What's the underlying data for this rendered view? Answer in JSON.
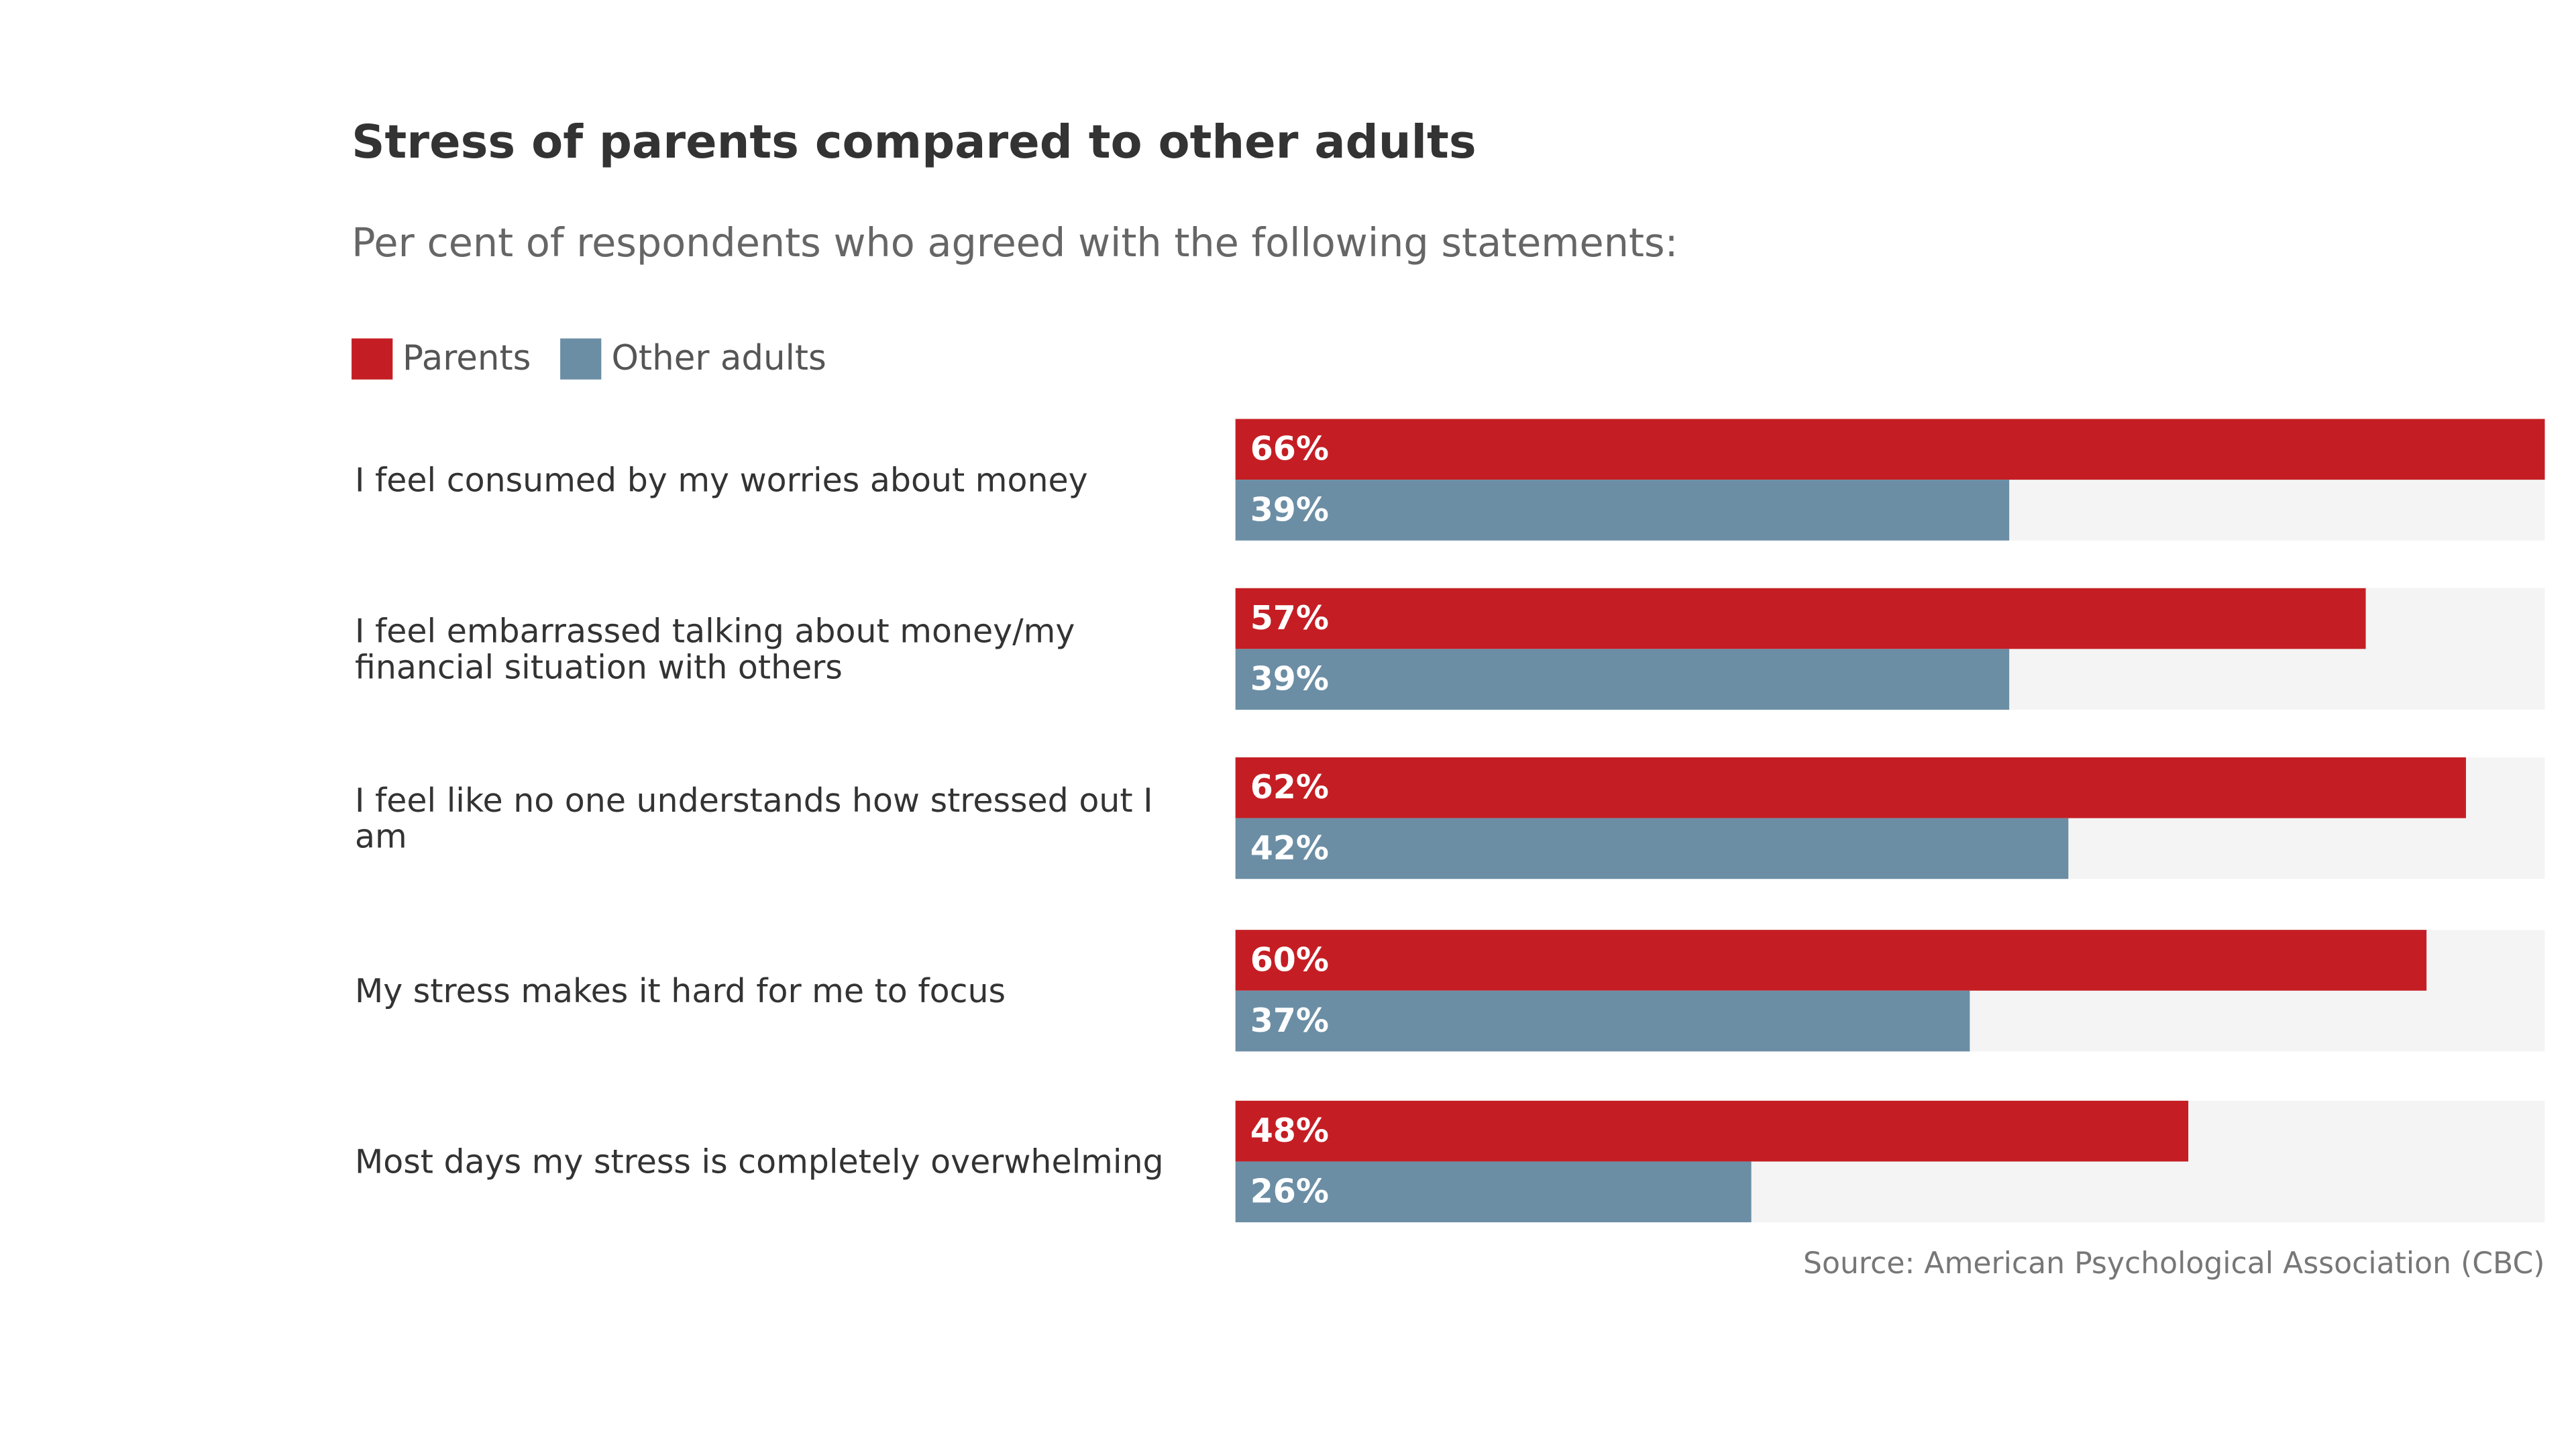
{
  "chart_data": {
    "type": "bar",
    "orientation": "horizontal",
    "title": "Stress of parents compared to other adults",
    "subtitle": "Per cent of respondents who agreed with the following statements:",
    "categories": [
      "I feel consumed by my worries about money",
      "I feel embarrassed talking about money/my financial situation with others",
      "I feel like no one understands how stressed out I am",
      "My stress makes it hard for me to focus",
      "Most days my stress is completely overwhelming"
    ],
    "series": [
      {
        "name": "Parents",
        "color": "#c41e24",
        "values": [
          66,
          57,
          62,
          60,
          48
        ]
      },
      {
        "name": "Other adults",
        "color": "#6b8ea5",
        "values": [
          39,
          39,
          42,
          37,
          26
        ]
      }
    ],
    "value_suffix": "%",
    "xlim": [
      0,
      66
    ],
    "legend_position": "top-left",
    "grid": false,
    "source": "Source: American Psychological Association (CBC)"
  }
}
